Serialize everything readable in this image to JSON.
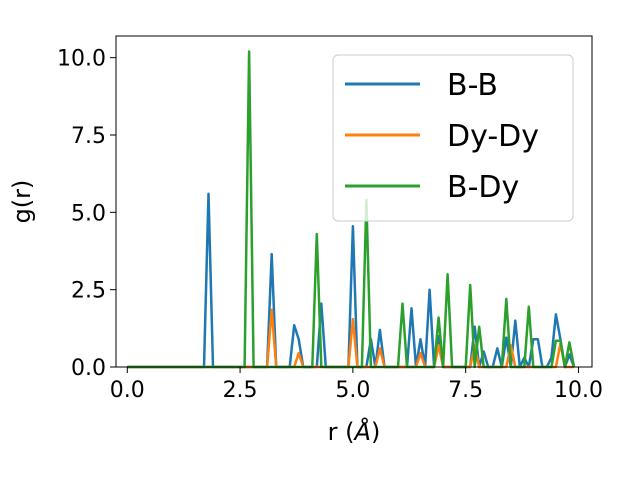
{
  "chart_data": {
    "type": "line",
    "title": "",
    "xlabel": "r (",
    "xlabel_unit": "Å",
    "xlabel_close": ")",
    "ylabel": "g(r)",
    "xlim": [
      -0.25,
      10.3
    ],
    "ylim": [
      0,
      10.7
    ],
    "xticks": [
      0.0,
      2.5,
      5.0,
      7.5,
      10.0
    ],
    "xtick_labels": [
      "0.0",
      "2.5",
      "5.0",
      "7.5",
      "10.0"
    ],
    "yticks": [
      0.0,
      2.5,
      5.0,
      7.5,
      10.0
    ],
    "ytick_labels": [
      "0.0",
      "2.5",
      "5.0",
      "7.5",
      "10.0"
    ],
    "grid": false,
    "legend_position": "upper-right",
    "series": [
      {
        "name": "B-B",
        "color": "#1f77b4",
        "x": [
          0.0,
          1.7,
          1.8,
          1.9,
          3.1,
          3.2,
          3.3,
          3.6,
          3.7,
          3.8,
          3.9,
          4.2,
          4.3,
          4.4,
          4.9,
          5.0,
          5.1,
          5.3,
          5.4,
          5.5,
          5.6,
          5.7,
          6.2,
          6.3,
          6.4,
          6.5,
          6.6,
          6.7,
          6.8,
          6.9,
          7.0,
          7.6,
          7.7,
          7.8,
          7.9,
          8.0,
          8.1,
          8.2,
          8.3,
          8.4,
          8.5,
          8.6,
          8.7,
          8.8,
          8.9,
          9.0,
          9.1,
          9.2,
          9.3,
          9.4,
          9.5,
          9.6,
          9.7,
          9.8,
          9.9
        ],
        "y": [
          0.0,
          0.0,
          5.6,
          0.0,
          0.0,
          3.65,
          0.0,
          0.0,
          1.35,
          0.9,
          0.0,
          0.0,
          2.05,
          0.0,
          0.0,
          4.55,
          0.0,
          0.0,
          0.9,
          0.0,
          1.2,
          0.0,
          0.0,
          1.9,
          0.0,
          0.9,
          0.0,
          2.5,
          0.0,
          1.0,
          0.0,
          0.0,
          1.3,
          0.0,
          0.5,
          0.0,
          0.0,
          0.6,
          0.0,
          0.95,
          0.0,
          1.5,
          0.0,
          0.3,
          0.0,
          0.9,
          0.9,
          0.0,
          0.0,
          0.3,
          1.7,
          0.9,
          0.0,
          0.4,
          0.0
        ]
      },
      {
        "name": "Dy-Dy",
        "color": "#ff7f0e",
        "x": [
          0.0,
          3.1,
          3.2,
          3.3,
          3.7,
          3.8,
          3.9,
          4.9,
          5.0,
          5.1,
          5.5,
          5.6,
          5.7,
          6.4,
          6.5,
          6.6,
          6.8,
          6.9,
          7.0,
          7.6,
          7.7,
          7.8,
          8.4,
          8.5,
          8.6,
          9.5,
          9.6,
          9.7,
          9.9
        ],
        "y": [
          0.0,
          0.0,
          1.85,
          0.0,
          0.0,
          0.45,
          0.0,
          0.0,
          1.55,
          0.0,
          0.0,
          0.6,
          0.0,
          0.0,
          0.45,
          0.0,
          0.0,
          0.7,
          0.0,
          0.0,
          0.7,
          0.0,
          0.0,
          0.7,
          0.0,
          0.0,
          0.75,
          0.0,
          0.0
        ]
      },
      {
        "name": "B-Dy",
        "color": "#2ca02c",
        "x": [
          0.0,
          2.6,
          2.7,
          2.8,
          4.1,
          4.2,
          4.3,
          5.2,
          5.3,
          5.4,
          6.0,
          6.1,
          6.2,
          6.8,
          6.9,
          7.0,
          7.1,
          7.2,
          7.5,
          7.6,
          7.7,
          7.8,
          7.9,
          8.3,
          8.4,
          8.5,
          8.8,
          8.9,
          9.0,
          9.4,
          9.5,
          9.6,
          9.7,
          9.8,
          9.9
        ],
        "y": [
          0.0,
          0.0,
          10.2,
          0.0,
          0.0,
          4.3,
          0.0,
          0.0,
          5.4,
          0.0,
          0.0,
          2.05,
          0.0,
          0.0,
          1.6,
          0.0,
          3.0,
          0.0,
          0.0,
          2.65,
          0.0,
          1.3,
          0.0,
          0.0,
          2.2,
          0.0,
          0.0,
          1.95,
          0.0,
          0.0,
          0.85,
          0.85,
          0.0,
          0.8,
          0.0
        ]
      }
    ]
  }
}
